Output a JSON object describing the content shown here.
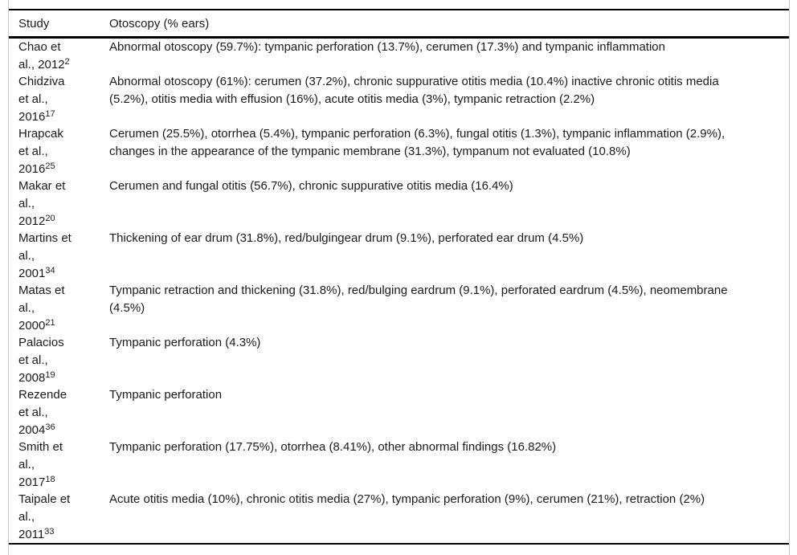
{
  "page": {
    "background_color": "#ffffff",
    "rule_color": "#000000",
    "frame_border_color": "#c9c9c9",
    "text_color": "#1a1a1a"
  },
  "table": {
    "columns": [
      {
        "label": "Study"
      },
      {
        "label": "Otoscopy (% ears)"
      }
    ],
    "rows": [
      {
        "study": "Chao et\nal., 2012^2",
        "otoscopy": "Abnormal otoscopy (59.7%): tympanic perforation (13.7%), cerumen (17.3%) and tympanic inflammation"
      },
      {
        "study": "Chidziva\net al.,\n2016^17",
        "otoscopy": "Abnormal otoscopy (61%): cerumen (37.2%), chronic suppurative otitis media (10.4%) inactive chronic otitis media\n(5.2%), otitis media with effusion (16%), acute otitis media (3%), tympanic retraction (2.2%)"
      },
      {
        "study": "Hrapcak\net al.,\n2016^25",
        "otoscopy": "Cerumen (25.5%), otorrhea (5.4%), tympanic perforation (6.3%), fungal otitis (1.3%), tympanic inflammation (2.9%),\nchanges in the appearance of the tympanic membrane (31.3%), tympanum not evaluated (10.8%)"
      },
      {
        "study": "Makar et\nal.,\n2012^20",
        "otoscopy": "Cerumen and fungal otitis (56.7%), chronic suppurative otitis media (16.4%)"
      },
      {
        "study": "Martins et\nal.,\n2001^34",
        "otoscopy": "Thickening of ear drum (31.8%), red/bulgingear drum (9.1%), perforated ear drum (4.5%)"
      },
      {
        "study": "Matas et\nal.,\n2000^21",
        "otoscopy": "Tympanic retraction and thickening (31.8%), red/bulging eardrum (9.1%), perforated eardrum (4.5%), neomembrane\n(4.5%)"
      },
      {
        "study": "Palacios\net al.,\n2008^19",
        "otoscopy": "Tympanic perforation (4.3%)"
      },
      {
        "study": "Rezende\net al.,\n2004^36",
        "otoscopy": "Tympanic perforation"
      },
      {
        "study": "Smith et\nal.,\n2017^18",
        "otoscopy": "Tympanic perforation (17.75%), otorrhea (8.41%), other abnormal findings (16.82%)"
      },
      {
        "study": "Taipale et\nal.,\n2011^33",
        "otoscopy": "Acute otitis media (10%), chronic otitis media (27%), tympanic perforation (9%), cerumen (21%), retraction (2%)"
      }
    ]
  }
}
